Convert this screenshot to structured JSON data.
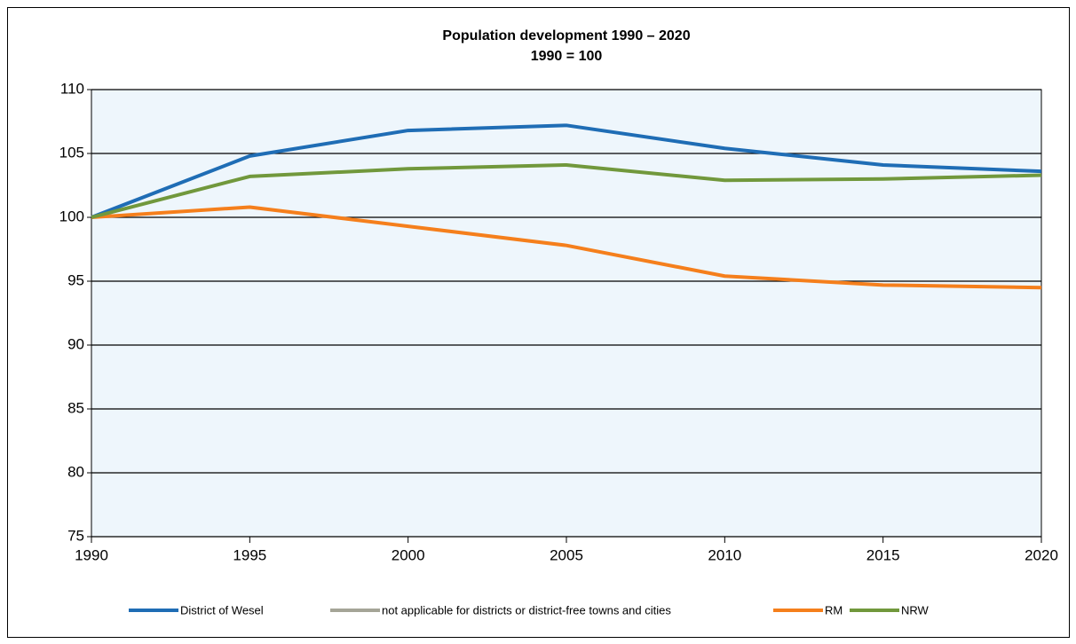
{
  "chart_data": {
    "type": "line",
    "title": "Population development  1990 – 2020",
    "subtitle": "1990 = 100",
    "x": [
      1990,
      1995,
      2000,
      2005,
      2010,
      2015,
      2020
    ],
    "xlim": [
      1990,
      2020
    ],
    "xticks": [
      1990,
      1995,
      2000,
      2005,
      2010,
      2015,
      2020
    ],
    "ylim": [
      75,
      110
    ],
    "yticks": [
      75,
      80,
      85,
      90,
      95,
      100,
      105,
      110
    ],
    "grid": true,
    "legend": "bottom",
    "series": [
      {
        "name": "District of Wesel",
        "color": "#1f6db5",
        "values": [
          100,
          104.8,
          106.8,
          107.2,
          105.4,
          104.1,
          103.6
        ]
      },
      {
        "name": "not applicable for districts or district-free towns and cities",
        "color": "#a5a597",
        "values": [
          null,
          null,
          null,
          null,
          null,
          null,
          null
        ]
      },
      {
        "name": "RM",
        "color": "#f57f1c",
        "values": [
          100,
          100.8,
          99.3,
          97.8,
          95.4,
          94.7,
          94.5
        ]
      },
      {
        "name": "NRW",
        "color": "#71983c",
        "values": [
          100,
          103.2,
          103.8,
          104.1,
          102.9,
          103.0,
          103.3
        ]
      }
    ]
  }
}
